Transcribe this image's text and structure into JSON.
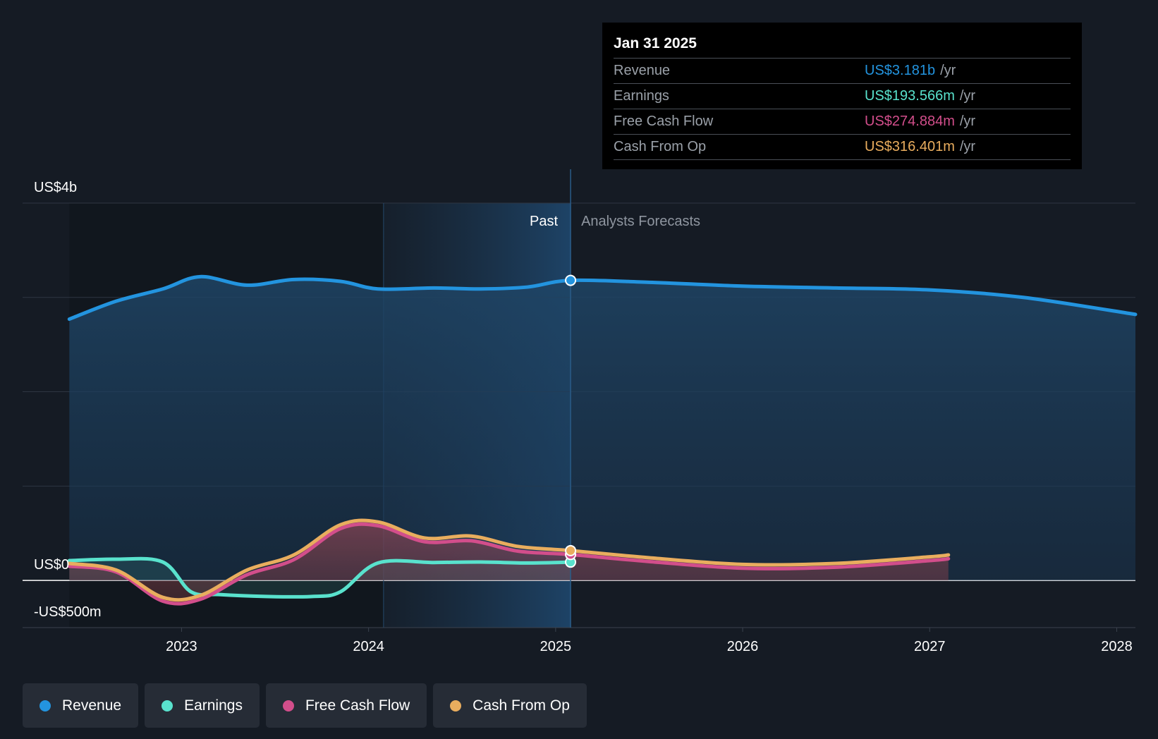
{
  "chart_data": {
    "type": "area",
    "y_axis": {
      "unit_labels": [
        {
          "value": 4000,
          "label": "US$4b"
        },
        {
          "value": 0,
          "label": "US$0"
        },
        {
          "value": -500,
          "label": "-US$500m"
        }
      ],
      "gridlines": [
        4000,
        3000,
        2000,
        1000,
        0
      ],
      "ylim": [
        -500,
        4000
      ]
    },
    "x_axis": {
      "ticks": [
        "2023",
        "2024",
        "2025",
        "2026",
        "2027",
        "2028"
      ],
      "xlim": [
        2022.15,
        2028.1
      ]
    },
    "past_label": "Past",
    "forecast_label": "Analysts Forecasts",
    "divider_x": 2025.08,
    "highlight_band": [
      2024.08,
      2025.08
    ],
    "series": [
      {
        "name": "Revenue",
        "color": "#2394df",
        "x": [
          2022.4,
          2022.65,
          2022.9,
          2023.1,
          2023.35,
          2023.6,
          2023.85,
          2024.05,
          2024.35,
          2024.6,
          2024.85,
          2025.08,
          2025.5,
          2026.0,
          2026.5,
          2027.0,
          2027.5,
          2028.1
        ],
        "values": [
          2770,
          2960,
          3090,
          3220,
          3130,
          3190,
          3170,
          3090,
          3100,
          3090,
          3110,
          3181,
          3160,
          3120,
          3100,
          3080,
          3000,
          2820
        ]
      },
      {
        "name": "Earnings",
        "color": "#59e2cd",
        "x": [
          2022.4,
          2022.65,
          2022.9,
          2023.05,
          2023.2,
          2023.45,
          2023.7,
          2023.85,
          2024.05,
          2024.35,
          2024.6,
          2024.85,
          2025.08
        ],
        "values": [
          210,
          225,
          195,
          -120,
          -150,
          -170,
          -170,
          -120,
          185,
          190,
          195,
          185,
          194
        ]
      },
      {
        "name": "Free Cash Flow",
        "color": "#d24e8b",
        "x": [
          2022.4,
          2022.65,
          2022.9,
          2023.1,
          2023.35,
          2023.6,
          2023.85,
          2024.05,
          2024.3,
          2024.55,
          2024.8,
          2025.08,
          2025.5,
          2026.0,
          2026.5,
          2027.0,
          2027.1
        ],
        "values": [
          150,
          90,
          -220,
          -200,
          60,
          220,
          550,
          580,
          410,
          420,
          310,
          275,
          200,
          130,
          140,
          210,
          230
        ]
      },
      {
        "name": "Cash From Op",
        "color": "#e9ad5e",
        "x": [
          2022.4,
          2022.65,
          2022.9,
          2023.1,
          2023.35,
          2023.6,
          2023.85,
          2024.05,
          2024.3,
          2024.55,
          2024.8,
          2025.08,
          2025.5,
          2026.0,
          2026.5,
          2027.0,
          2027.1
        ],
        "values": [
          180,
          110,
          -180,
          -160,
          110,
          270,
          590,
          620,
          450,
          470,
          360,
          316,
          240,
          170,
          180,
          250,
          270
        ]
      }
    ],
    "tooltip": {
      "date": "Jan 31 2025",
      "rows": [
        {
          "name": "Revenue",
          "value": "US$3.181b",
          "unit": "/yr",
          "color": "#2394df"
        },
        {
          "name": "Earnings",
          "value": "US$193.566m",
          "unit": "/yr",
          "color": "#59e2cd"
        },
        {
          "name": "Free Cash Flow",
          "value": "US$274.884m",
          "unit": "/yr",
          "color": "#d24e8b"
        },
        {
          "name": "Cash From Op",
          "value": "US$316.401m",
          "unit": "/yr",
          "color": "#e9ad5e"
        }
      ]
    }
  },
  "legend": [
    {
      "label": "Revenue",
      "color": "#2394df"
    },
    {
      "label": "Earnings",
      "color": "#59e2cd"
    },
    {
      "label": "Free Cash Flow",
      "color": "#d24e8b"
    },
    {
      "label": "Cash From Op",
      "color": "#e9ad5e"
    }
  ]
}
